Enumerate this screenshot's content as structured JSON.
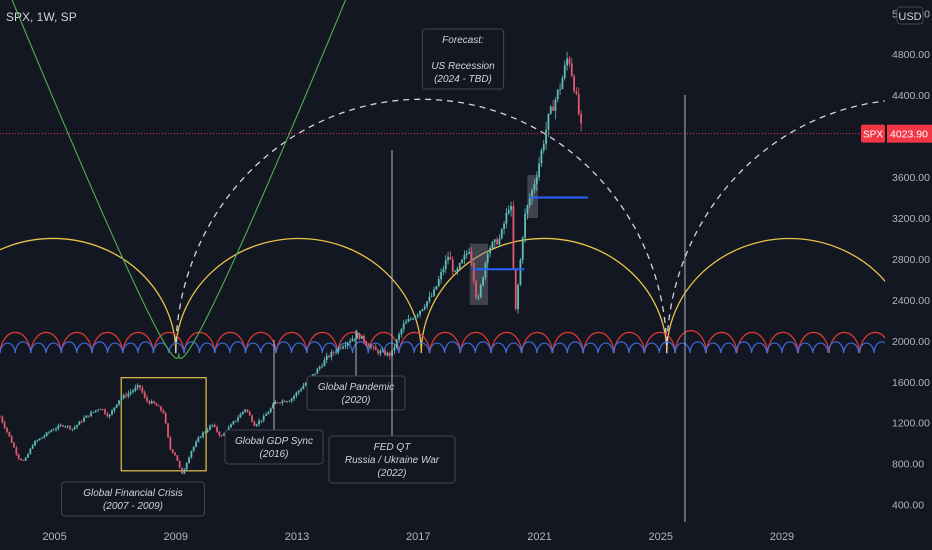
{
  "header": {
    "symbol_label": "SPX, 1W, SP",
    "currency": "USD"
  },
  "colors": {
    "background": "#131722",
    "grid_text": "#b2b5be",
    "price_line": "#f23645",
    "candle_up": "#5fbfb8",
    "candle_down": "#e0596e",
    "yellow_arc": "#e8c34a",
    "white_arc": "#d1d4dc",
    "green_arc": "#4caf50",
    "red_arc": "#e53935",
    "blue_arc": "#3d6be0",
    "blue_level": "#2962ff"
  },
  "chart_data": {
    "type": "line",
    "title": "SPX, 1W, SP",
    "xlabel": "",
    "ylabel": "",
    "x_ticks": [
      "2005",
      "2009",
      "2013",
      "2017",
      "2021",
      "2025",
      "2029"
    ],
    "x_range": [
      2003.2,
      2032.4
    ],
    "y_ticks": [
      400,
      800,
      1200,
      1600,
      2000,
      2400,
      2800,
      3200,
      3600,
      4000,
      4400,
      4800,
      5200
    ],
    "y_tick_labels": [
      "400.00",
      "800.00",
      "1200.00",
      "1600.00",
      "2000.00",
      "2400.00",
      "2800.00",
      "3200.00",
      "3600.00",
      "4000.00",
      "4400.00",
      "4800.00",
      "5200.00"
    ],
    "y_range": [
      230,
      5330
    ],
    "last_price": {
      "label": "SPX",
      "value": 4023.9,
      "value_label": "4023.90"
    },
    "series": [
      {
        "name": "SPX",
        "points": [
          [
            2003.2,
            1260
          ],
          [
            2003.5,
            1070
          ],
          [
            2003.8,
            860
          ],
          [
            2004.0,
            820
          ],
          [
            2004.3,
            1000
          ],
          [
            2004.6,
            1060
          ],
          [
            2004.9,
            1130
          ],
          [
            2005.3,
            1180
          ],
          [
            2005.6,
            1140
          ],
          [
            2006.0,
            1250
          ],
          [
            2006.5,
            1350
          ],
          [
            2006.8,
            1260
          ],
          [
            2007.1,
            1420
          ],
          [
            2007.5,
            1500
          ],
          [
            2007.8,
            1560
          ],
          [
            2008.0,
            1420
          ],
          [
            2008.3,
            1380
          ],
          [
            2008.6,
            1300
          ],
          [
            2008.8,
            950
          ],
          [
            2009.0,
            880
          ],
          [
            2009.2,
            690
          ],
          [
            2009.5,
            920
          ],
          [
            2009.8,
            1070
          ],
          [
            2010.2,
            1180
          ],
          [
            2010.5,
            1060
          ],
          [
            2010.9,
            1200
          ],
          [
            2011.3,
            1340
          ],
          [
            2011.6,
            1180
          ],
          [
            2011.9,
            1250
          ],
          [
            2012.3,
            1400
          ],
          [
            2012.8,
            1430
          ],
          [
            2013.2,
            1560
          ],
          [
            2013.6,
            1690
          ],
          [
            2014.0,
            1840
          ],
          [
            2014.5,
            1960
          ],
          [
            2015.0,
            2060
          ],
          [
            2015.6,
            1900
          ],
          [
            2016.1,
            1860
          ],
          [
            2016.5,
            2150
          ],
          [
            2017.0,
            2280
          ],
          [
            2017.5,
            2460
          ],
          [
            2018.0,
            2840
          ],
          [
            2018.2,
            2640
          ],
          [
            2018.7,
            2910
          ],
          [
            2018.95,
            2350
          ],
          [
            2019.3,
            2900
          ],
          [
            2019.7,
            3000
          ],
          [
            2020.05,
            3380
          ],
          [
            2020.2,
            2240
          ],
          [
            2020.5,
            3200
          ],
          [
            2020.9,
            3620
          ],
          [
            2021.3,
            4180
          ],
          [
            2021.7,
            4500
          ],
          [
            2021.95,
            4800
          ],
          [
            2022.2,
            4400
          ],
          [
            2022.4,
            4023.9
          ]
        ]
      }
    ],
    "levels": [
      {
        "value": 2700,
        "x_start": 2018.8,
        "x_end": 2020.5
      },
      {
        "value": 3400,
        "x_start": 2020.7,
        "x_end": 2022.6
      }
    ],
    "highlight_ranges": [
      {
        "x_start": 2018.7,
        "x_end": 2019.3,
        "y_low": 2350,
        "y_high": 2950
      },
      {
        "x_start": 2020.6,
        "x_end": 2020.95,
        "y_low": 3200,
        "y_high": 3620
      }
    ],
    "cycle_arcs": [
      {
        "name": "yellow",
        "baseline": 1880,
        "peak": 3000,
        "start": 2000.9,
        "period": 8.1
      },
      {
        "name": "white-dashed",
        "baseline": 1880,
        "peak": 4360,
        "start": 2009.0,
        "period": 16.2
      },
      {
        "name": "red",
        "baseline": 1880,
        "peak": 2100,
        "start": 2003.2,
        "period": 1.013
      },
      {
        "name": "blue",
        "baseline": 1880,
        "peak": 1990,
        "start": 2003.2,
        "period": 0.506
      }
    ],
    "boxes": [
      {
        "x_start": 2007.2,
        "x_end": 2010.0,
        "y_low": 730,
        "y_high": 1640
      }
    ],
    "vertical_line": {
      "x": 2025.8
    },
    "annotations": [
      {
        "lines": [
          "Global Financial Crisis",
          "(2007 - 2009)"
        ],
        "anchor_x": 2009.1
      },
      {
        "lines": [
          "Global GDP Sync",
          "(2016)"
        ],
        "anchor_x": 2016.4
      },
      {
        "lines": [
          "Global Pandemic",
          "(2020)"
        ],
        "anchor_x": 2020.2
      },
      {
        "lines": [
          "FED QT",
          "Russia / Ukraine War",
          "(2022)"
        ],
        "anchor_x": 2021.8
      },
      {
        "lines": [
          "Forecast:",
          "",
          "US Recession",
          "(2024 - TBD)"
        ],
        "anchor_x": 2025.8
      }
    ]
  }
}
